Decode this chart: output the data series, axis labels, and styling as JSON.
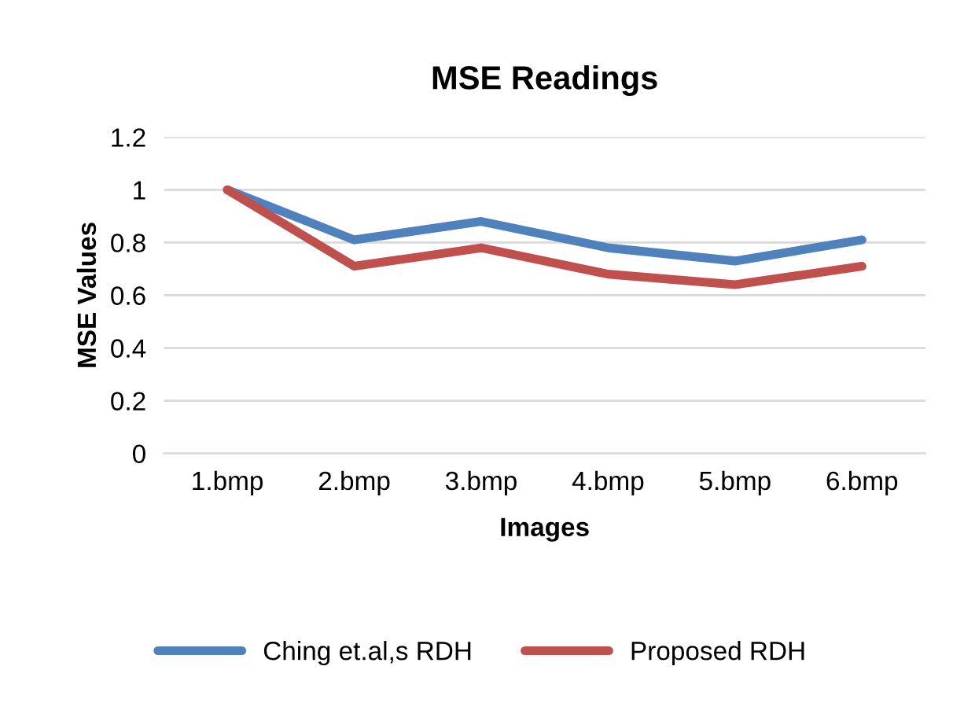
{
  "chart_data": {
    "type": "line",
    "title": "MSE Readings",
    "xlabel": "Images",
    "ylabel": "MSE Values",
    "categories": [
      "1.bmp",
      "2.bmp",
      "3.bmp",
      "4.bmp",
      "5.bmp",
      "6.bmp"
    ],
    "series": [
      {
        "name": "Ching et.al,s RDH",
        "color": "#4f81bd",
        "values": [
          1.0,
          0.81,
          0.88,
          0.78,
          0.73,
          0.81
        ]
      },
      {
        "name": "Proposed RDH",
        "color": "#c0504d",
        "values": [
          1.0,
          0.71,
          0.78,
          0.68,
          0.64,
          0.71
        ]
      }
    ],
    "ylim": [
      0,
      1.2
    ],
    "yticks": [
      0,
      0.2,
      0.4,
      0.6,
      0.8,
      1,
      1.2
    ],
    "grid": "y",
    "legend": "bottom",
    "marker": "none",
    "line_style": "solid"
  }
}
